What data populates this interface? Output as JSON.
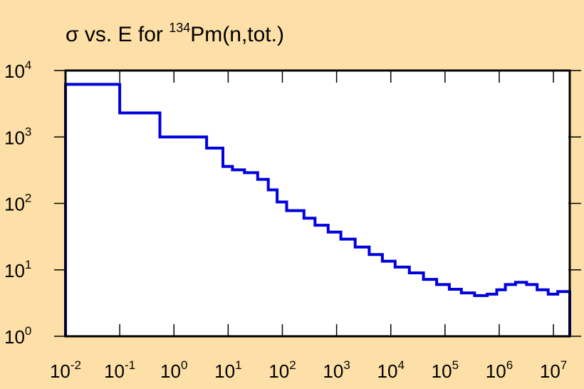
{
  "chart_data": {
    "type": "line",
    "title": {
      "prefix": "σ vs. E for ",
      "superscript": "134",
      "suffix": "Pm(n,tot.)"
    },
    "xlabel": "",
    "ylabel": "",
    "x_scale": "log",
    "y_scale": "log",
    "xlim": [
      0.01,
      20000000
    ],
    "ylim": [
      1,
      10000
    ],
    "x_ticks": [
      {
        "base": "10",
        "exp": "-2",
        "value": 0.01
      },
      {
        "base": "10",
        "exp": "-1",
        "value": 0.1
      },
      {
        "base": "10",
        "exp": "0",
        "value": 1
      },
      {
        "base": "10",
        "exp": "1",
        "value": 10
      },
      {
        "base": "10",
        "exp": "2",
        "value": 100
      },
      {
        "base": "10",
        "exp": "3",
        "value": 1000
      },
      {
        "base": "10",
        "exp": "4",
        "value": 10000
      },
      {
        "base": "10",
        "exp": "5",
        "value": 100000
      },
      {
        "base": "10",
        "exp": "6",
        "value": 1000000
      },
      {
        "base": "10",
        "exp": "7",
        "value": 10000000
      }
    ],
    "y_ticks": [
      {
        "base": "10",
        "exp": "0",
        "value": 1
      },
      {
        "base": "10",
        "exp": "1",
        "value": 10
      },
      {
        "base": "10",
        "exp": "2",
        "value": 100
      },
      {
        "base": "10",
        "exp": "3",
        "value": 1000
      },
      {
        "base": "10",
        "exp": "4",
        "value": 10000
      }
    ],
    "series": [
      {
        "color": "#0000DD",
        "step": true,
        "points": [
          [
            0.01,
            6200
          ],
          [
            0.1,
            2300
          ],
          [
            0.55,
            1000
          ],
          [
            4,
            680
          ],
          [
            8,
            360
          ],
          [
            12,
            320
          ],
          [
            20,
            290
          ],
          [
            35,
            230
          ],
          [
            55,
            160
          ],
          [
            80,
            105
          ],
          [
            120,
            78
          ],
          [
            250,
            60
          ],
          [
            400,
            47
          ],
          [
            700,
            37
          ],
          [
            1200,
            29
          ],
          [
            2200,
            22
          ],
          [
            4000,
            17
          ],
          [
            7000,
            13.5
          ],
          [
            12000,
            11
          ],
          [
            22000,
            9
          ],
          [
            40000,
            7.2
          ],
          [
            70000,
            6
          ],
          [
            120000,
            5.1
          ],
          [
            200000,
            4.5
          ],
          [
            350000,
            4.1
          ],
          [
            600000,
            4.3
          ],
          [
            900000,
            5
          ],
          [
            1300000,
            6
          ],
          [
            2000000,
            6.5
          ],
          [
            3200000,
            6
          ],
          [
            5000000,
            5
          ],
          [
            8000000,
            4.3
          ],
          [
            12000000,
            4.7
          ],
          [
            20000000,
            4.7
          ]
        ]
      }
    ],
    "grid": false,
    "legend": "none"
  }
}
